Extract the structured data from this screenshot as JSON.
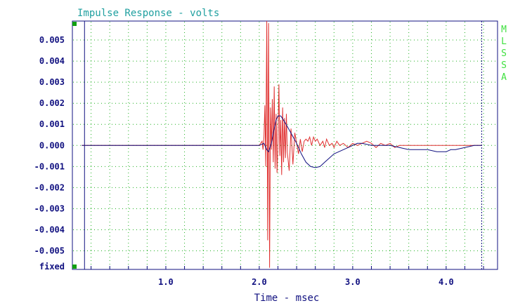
{
  "chart_data": {
    "type": "line",
    "title": "Impulse Response - volts",
    "xlabel": "Time - msec",
    "ylabel": "",
    "xlim": [
      0,
      4.55
    ],
    "ylim": [
      -0.00588,
      0.0059
    ],
    "x_ticks": [
      {
        "value": 1.0,
        "label": "1.0"
      },
      {
        "value": 2.0,
        "label": "2.0"
      },
      {
        "value": 3.0,
        "label": "3.0"
      },
      {
        "value": 4.0,
        "label": "4.0"
      }
    ],
    "y_ticks": [
      {
        "value": 0.005,
        "label": "0.005"
      },
      {
        "value": 0.004,
        "label": "0.004"
      },
      {
        "value": 0.003,
        "label": "0.003"
      },
      {
        "value": 0.002,
        "label": "0.002"
      },
      {
        "value": 0.001,
        "label": "0.001"
      },
      {
        "value": 0.0,
        "label": "0.000"
      },
      {
        "value": -0.001,
        "label": "-0.001"
      },
      {
        "value": -0.002,
        "label": "-0.002"
      },
      {
        "value": -0.003,
        "label": "-0.003"
      },
      {
        "value": -0.004,
        "label": "-0.004"
      },
      {
        "value": -0.005,
        "label": "-0.005"
      }
    ],
    "y_bottom_label": "fixed",
    "side_label": "M L S S A",
    "gate_markers_x": [
      0.13,
      4.38
    ],
    "grid": true,
    "series": [
      {
        "color": "#e03030",
        "x": [
          0.1,
          0.5,
          1.0,
          1.5,
          1.9,
          2.0,
          2.03,
          2.04,
          2.05,
          2.06,
          2.07,
          2.08,
          2.09,
          2.1,
          2.11,
          2.12,
          2.13,
          2.14,
          2.15,
          2.16,
          2.17,
          2.18,
          2.19,
          2.2,
          2.21,
          2.22,
          2.23,
          2.24,
          2.25,
          2.26,
          2.27,
          2.28,
          2.29,
          2.3,
          2.32,
          2.34,
          2.36,
          2.38,
          2.4,
          2.42,
          2.44,
          2.46,
          2.48,
          2.5,
          2.52,
          2.54,
          2.56,
          2.58,
          2.6,
          2.62,
          2.65,
          2.68,
          2.7,
          2.72,
          2.75,
          2.78,
          2.8,
          2.83,
          2.86,
          2.9,
          2.95,
          3.0,
          3.05,
          3.1,
          3.15,
          3.2,
          3.25,
          3.3,
          3.35,
          3.4,
          3.45,
          3.5,
          3.6,
          3.7,
          3.8,
          3.9,
          4.0,
          4.1,
          4.2,
          4.3,
          4.38
        ],
        "y": [
          0.0,
          0.0,
          0.0,
          0.0,
          0.0,
          0.0,
          0.0002,
          -0.0002,
          0.0004,
          0.0019,
          -0.001,
          0.006,
          -0.0045,
          0.0058,
          -0.0058,
          0.0018,
          -0.0002,
          0.0022,
          -0.0008,
          0.0028,
          -0.0011,
          0.0015,
          -0.0013,
          0.0002,
          0.0029,
          -0.0005,
          0.0012,
          -0.0014,
          0.0018,
          -0.0008,
          0.0013,
          -0.0006,
          0.0015,
          -0.0003,
          -0.0012,
          0.0008,
          -0.0009,
          0.0006,
          0.0001,
          -0.0004,
          0.0003,
          -0.0003,
          0.0002,
          0.0003,
          0.0002,
          0.0004,
          0.0,
          0.0004,
          0.0002,
          0.0003,
          0.0,
          0.0002,
          -0.0001,
          0.0003,
          0.0,
          0.0001,
          -0.0001,
          0.0002,
          0.0,
          0.0001,
          -0.0001,
          0.0001,
          0.0,
          0.0001,
          0.0002,
          0.0001,
          -0.0001,
          0.0001,
          0.0,
          0.0001,
          -0.0001,
          0.0,
          0.0,
          0.0,
          0.0,
          0.0,
          0.0,
          0.0,
          0.0,
          0.0,
          0.0
        ]
      },
      {
        "color": "#101080",
        "x": [
          0.1,
          0.5,
          1.0,
          1.5,
          1.9,
          2.0,
          2.05,
          2.08,
          2.1,
          2.13,
          2.15,
          2.18,
          2.2,
          2.23,
          2.26,
          2.3,
          2.35,
          2.4,
          2.45,
          2.5,
          2.55,
          2.6,
          2.65,
          2.7,
          2.75,
          2.8,
          2.85,
          2.9,
          2.95,
          3.0,
          3.05,
          3.1,
          3.2,
          3.3,
          3.4,
          3.5,
          3.6,
          3.7,
          3.8,
          3.9,
          3.95,
          4.0,
          4.05,
          4.1,
          4.2,
          4.3,
          4.38
        ],
        "y": [
          0.0,
          0.0,
          0.0,
          0.0,
          0.0,
          0.0,
          0.0001,
          -0.0002,
          -0.0003,
          0.0001,
          0.0006,
          0.0012,
          0.0014,
          0.0014,
          0.0012,
          0.0009,
          0.0005,
          0.0001,
          -0.0004,
          -0.0008,
          -0.001,
          -0.00105,
          -0.001,
          -0.0008,
          -0.0006,
          -0.0004,
          -0.0003,
          -0.0002,
          -0.0001,
          0.0,
          0.0001,
          0.0001,
          0.0,
          0.0,
          0.0,
          -0.0001,
          -0.0002,
          -0.0002,
          -0.0002,
          -0.0003,
          -0.0003,
          -0.0003,
          -0.0002,
          -0.0002,
          -0.0001,
          0.0,
          0.0
        ]
      }
    ]
  }
}
